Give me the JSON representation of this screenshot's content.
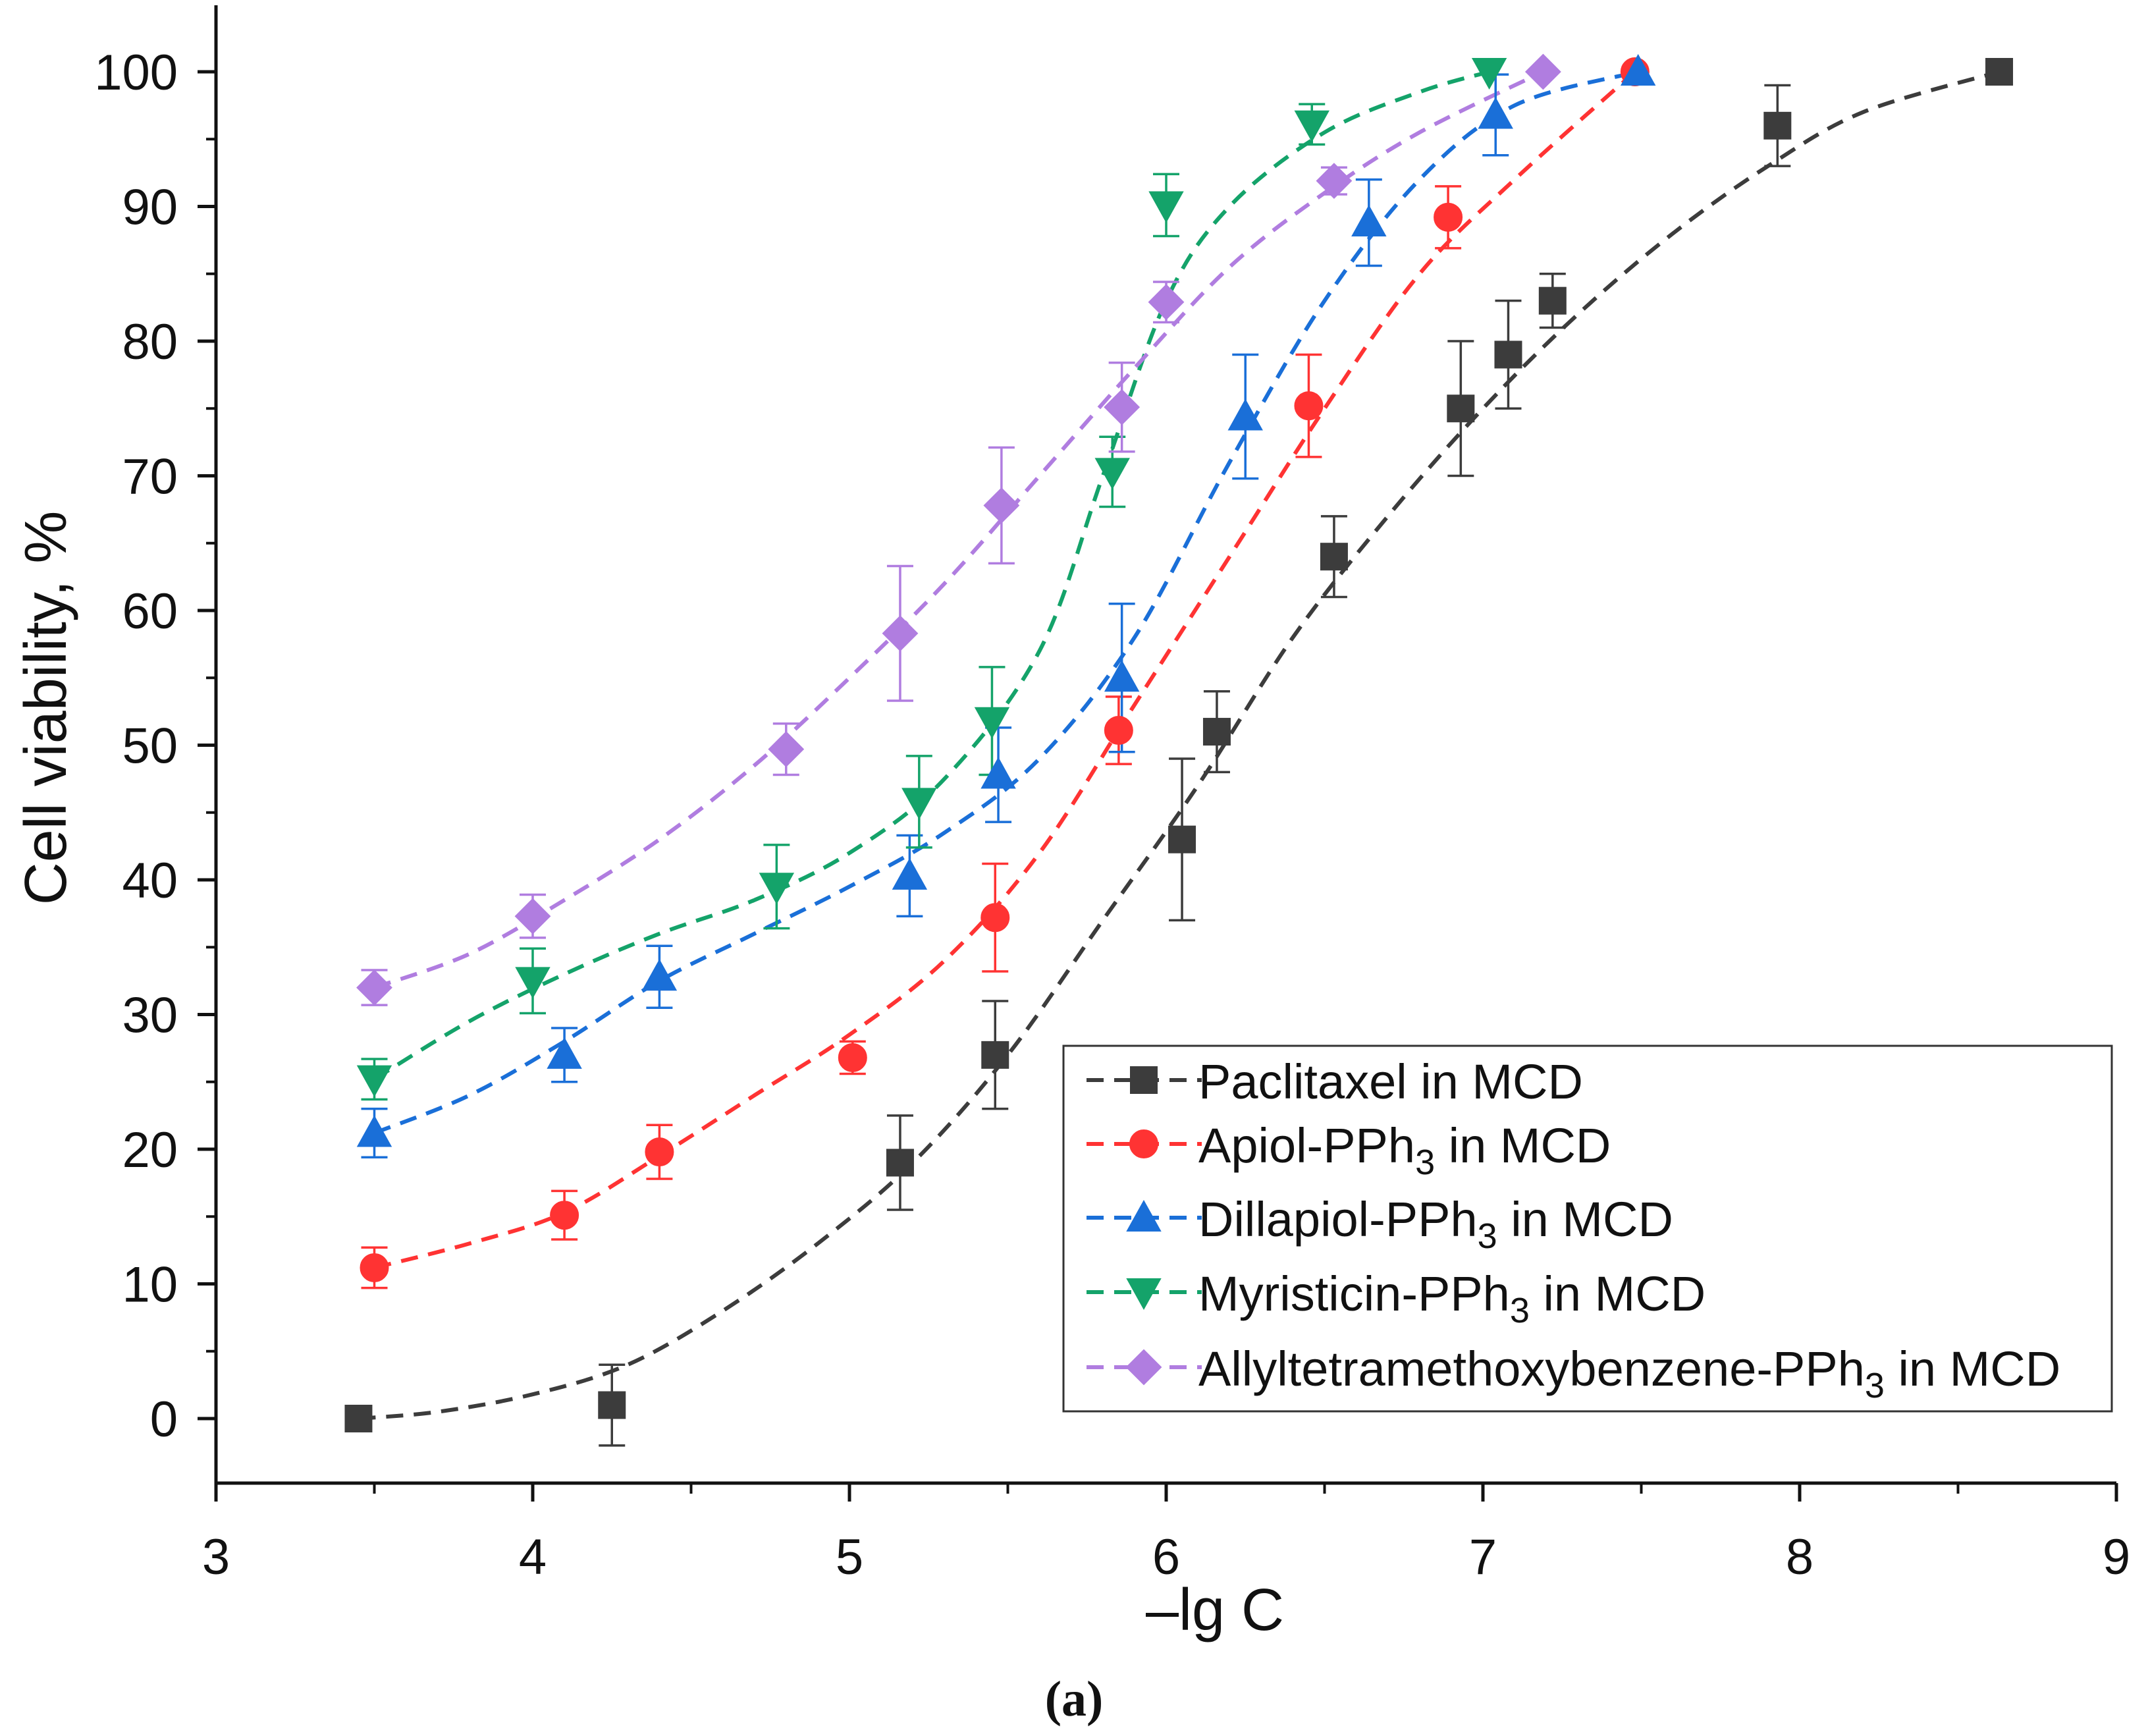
{
  "chart_data": {
    "type": "line",
    "caption": "(a)",
    "xlabel": "–lg C",
    "ylabel": "Cell viability, %",
    "xlim": [
      3,
      9
    ],
    "ylim": [
      -5,
      105
    ],
    "xticks": [
      3,
      4,
      5,
      6,
      7,
      8,
      9
    ],
    "yticks": [
      0,
      10,
      20,
      30,
      40,
      50,
      60,
      70,
      80,
      90,
      100
    ],
    "xtick_labels": [
      "3",
      "4",
      "5",
      "6",
      "7",
      "8",
      "9"
    ],
    "ytick_labels": [
      "0",
      "10",
      "20",
      "30",
      "40",
      "50",
      "60",
      "70",
      "80",
      "90",
      "100"
    ],
    "legend_position": "bottom-right",
    "series": [
      {
        "name": "Paclitaxel in MCD",
        "label_main": "Paclitaxel in MCD",
        "label_sub": "",
        "label_tail": "",
        "color": "#3c3c3c",
        "marker": "square",
        "x": [
          3.45,
          4.25,
          5.16,
          5.46,
          6.05,
          6.16,
          6.53,
          6.93,
          7.08,
          7.22,
          7.93,
          8.63
        ],
        "y": [
          0,
          1,
          19,
          27,
          43,
          51,
          64,
          75,
          79,
          83,
          96,
          100
        ],
        "err": [
          0,
          3,
          3.5,
          4,
          6,
          3,
          3,
          5,
          4,
          2,
          3,
          0
        ],
        "fit_x": [
          3.45,
          3.7,
          4.0,
          4.3,
          4.6,
          4.9,
          5.2,
          5.5,
          5.8,
          6.1,
          6.4,
          6.7,
          7.0,
          7.3,
          7.6,
          7.9,
          8.2,
          8.63
        ],
        "fit_y": [
          0,
          0.5,
          1.8,
          4,
          8,
          13,
          19,
          27,
          37,
          47,
          58,
          67,
          75,
          82,
          88,
          93,
          97,
          100
        ]
      },
      {
        "name": "Apiol-PPh3 in MCD",
        "label_main": "Apiol-PPh",
        "label_sub": "3",
        "label_tail": " in MCD",
        "color": "#ff3333",
        "marker": "circle",
        "x": [
          3.5,
          4.1,
          4.4,
          5.01,
          5.46,
          5.85,
          6.45,
          6.89,
          7.48
        ],
        "y": [
          11.2,
          15.1,
          19.8,
          26.8,
          37.2,
          51.1,
          75.2,
          89.2,
          100
        ],
        "err": [
          1.5,
          1.8,
          2,
          1.2,
          4,
          2.5,
          3.8,
          2.3,
          0
        ],
        "fit_x": [
          3.5,
          3.8,
          4.1,
          4.4,
          4.7,
          5.0,
          5.3,
          5.6,
          5.9,
          6.2,
          6.5,
          6.8,
          7.1,
          7.48
        ],
        "fit_y": [
          11.2,
          13,
          15.3,
          19.5,
          24,
          28.5,
          34,
          42,
          53,
          64,
          75,
          85,
          92,
          100
        ]
      },
      {
        "name": "Dillapiol-PPh3 in MCD",
        "label_main": "Dillapiol-PPh",
        "label_sub": "3",
        "label_tail": " in MCD",
        "color": "#1a6fd8",
        "marker": "triangle-up",
        "x": [
          3.5,
          4.1,
          4.4,
          5.19,
          5.47,
          5.86,
          6.25,
          6.64,
          7.04,
          7.49
        ],
        "y": [
          21.2,
          27,
          32.8,
          40.3,
          47.8,
          55,
          74.4,
          88.8,
          96.8,
          100
        ],
        "err": [
          1.8,
          2,
          2.3,
          3,
          3.5,
          5.5,
          4.6,
          3.2,
          3,
          0
        ],
        "fit_x": [
          3.5,
          3.8,
          4.1,
          4.4,
          4.7,
          5.0,
          5.3,
          5.6,
          5.9,
          6.2,
          6.5,
          6.8,
          7.1,
          7.49
        ],
        "fit_y": [
          21.2,
          24,
          28,
          32.5,
          36,
          39.5,
          43.5,
          49,
          58,
          71,
          83,
          92,
          97.5,
          100
        ]
      },
      {
        "name": "Myristicin-PPh3 in MCD",
        "label_main": "Myristicin-PPh",
        "label_sub": "3",
        "label_tail": " in MCD",
        "color": "#14a36a",
        "marker": "triangle-down",
        "x": [
          3.5,
          4.0,
          4.77,
          5.22,
          5.45,
          5.83,
          6.0,
          6.46,
          7.02
        ],
        "y": [
          25.2,
          32.5,
          39.5,
          45.8,
          51.8,
          70.3,
          90.1,
          96.1,
          100
        ],
        "err": [
          1.5,
          2.4,
          3.1,
          3.4,
          4,
          2.6,
          2.3,
          1.5,
          0
        ],
        "fit_x": [
          3.5,
          3.8,
          4.1,
          4.4,
          4.7,
          5.0,
          5.3,
          5.6,
          5.8,
          6.0,
          6.2,
          6.5,
          6.8,
          7.02
        ],
        "fit_y": [
          25.2,
          29.5,
          33,
          36,
          38.5,
          42,
          47.5,
          57,
          70,
          83,
          90,
          95.5,
          98.5,
          100
        ]
      },
      {
        "name": "Allyltetramethoxybenzene-PPh3 in MCD",
        "label_main": "Allyltetramethoxybenzene-PPh",
        "label_sub": "3",
        "label_tail": " in MCD",
        "color": "#b07de0",
        "marker": "diamond",
        "x": [
          3.5,
          4.0,
          4.8,
          5.16,
          5.48,
          5.86,
          6.0,
          6.53,
          7.19
        ],
        "y": [
          32,
          37.3,
          49.7,
          58.3,
          67.8,
          75.1,
          82.9,
          91.9,
          100
        ],
        "err": [
          1.3,
          1.6,
          1.9,
          5,
          4.3,
          3.3,
          1.5,
          1,
          0
        ],
        "fit_x": [
          3.5,
          3.8,
          4.1,
          4.4,
          4.7,
          5.0,
          5.3,
          5.6,
          5.9,
          6.2,
          6.5,
          6.8,
          7.19
        ],
        "fit_y": [
          32,
          34.5,
          38.5,
          43,
          48.5,
          55,
          62,
          70,
          78,
          85.5,
          91,
          95.5,
          100
        ]
      }
    ]
  }
}
